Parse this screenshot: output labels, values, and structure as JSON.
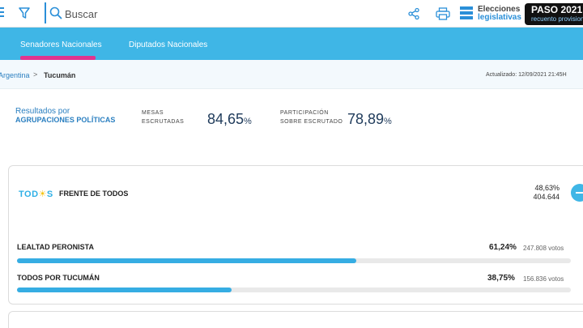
{
  "toolbar": {
    "search_placeholder": "Buscar",
    "logo_line1": "Elecciones",
    "logo_line2": "legislativas",
    "paso_title": "PASO 2021",
    "paso_subtitle": "recuento provisional"
  },
  "tabs": [
    {
      "label": "Senadores Nacionales",
      "active": true
    },
    {
      "label": "Diputados Nacionales",
      "active": false
    }
  ],
  "breadcrumb": {
    "root": "Argentina",
    "separator": ">",
    "current": "Tucumán"
  },
  "updated": "Actualizado: 12/09/2021 21:45H",
  "summary": {
    "results_label_1": "Resultados por",
    "results_label_2": "AGRUPACIONES POLÍTICAS",
    "mesas_label_1": "MESAS",
    "mesas_label_2": "ESCRUTADAS",
    "mesas_value": "84,65",
    "participacion_label_1": "PARTICIPACIÓN",
    "participacion_label_2": "SOBRE ESCRUTADO",
    "participacion_value": "78,89",
    "percent_sign": "%"
  },
  "party": {
    "logo_text": "TOD",
    "logo_sun": "☀",
    "logo_end": "S",
    "name": "FRENTE DE TODOS",
    "percent": "48,63%",
    "votes": "404.644",
    "lists": [
      {
        "name": "LEALTAD PERONISTA",
        "percent": "61,24%",
        "votes": "247.808 votos",
        "share": 0.6124
      },
      {
        "name": "TODOS POR TUCUMÁN",
        "percent": "38,75%",
        "votes": "156.836 votos",
        "share": 0.3875
      }
    ]
  },
  "colors": {
    "accent": "#3fb6e6",
    "tab_indicator": "#e0348f",
    "bar": "#36ade3"
  }
}
